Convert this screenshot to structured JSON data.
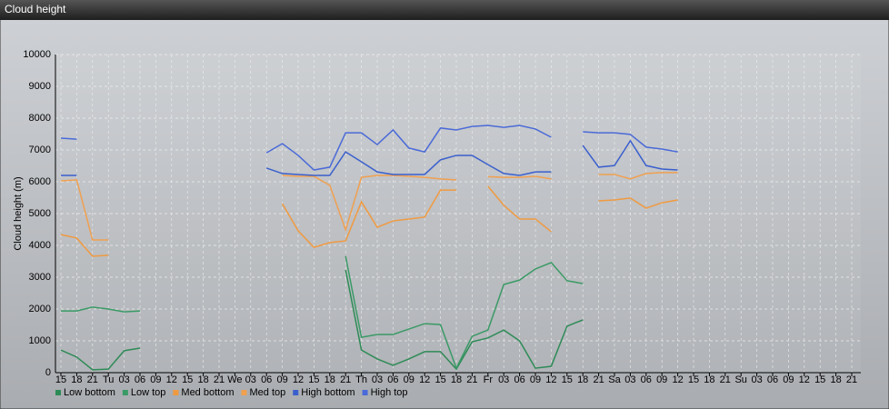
{
  "chart_data": {
    "type": "line",
    "title": "Cloud height",
    "y_label": "Cloud height (m)",
    "categories": [
      "15",
      "18",
      "21",
      "Tu",
      "03",
      "06",
      "09",
      "12",
      "15",
      "18",
      "21",
      "We",
      "03",
      "06",
      "09",
      "12",
      "15",
      "18",
      "21",
      "Th",
      "03",
      "06",
      "09",
      "12",
      "15",
      "18",
      "21",
      "Fr",
      "03",
      "06",
      "09",
      "12",
      "15",
      "18",
      "21",
      "Sa",
      "03",
      "06",
      "09",
      "12",
      "15",
      "18",
      "21",
      "Su",
      "03",
      "06",
      "09",
      "12",
      "15",
      "18",
      "21"
    ],
    "ylim": [
      0,
      10000
    ],
    "yticks": [
      0,
      1000,
      2000,
      3000,
      4000,
      5000,
      6000,
      7000,
      8000,
      9000,
      10000
    ],
    "grid": true,
    "legend": "bottom",
    "series": [
      {
        "name": "Low bottom",
        "color": "#2e8b57",
        "values": [
          710,
          490,
          90,
          110,
          690,
          770,
          null,
          null,
          null,
          null,
          null,
          null,
          null,
          null,
          null,
          null,
          null,
          null,
          3230,
          710,
          430,
          230,
          430,
          660,
          660,
          110,
          970,
          1090,
          1340,
          1000,
          140,
          200,
          1460,
          1660,
          null,
          null,
          null,
          null,
          null,
          null,
          null,
          null,
          null,
          null,
          null,
          null,
          null,
          null,
          null,
          null,
          null
        ]
      },
      {
        "name": "Low top",
        "color": "#3a9a66",
        "values": [
          1940,
          1940,
          2060,
          2000,
          1910,
          1940,
          null,
          null,
          null,
          null,
          null,
          null,
          null,
          null,
          null,
          null,
          null,
          null,
          3660,
          1110,
          1200,
          1200,
          1370,
          1540,
          1510,
          140,
          1140,
          1340,
          2770,
          2910,
          3260,
          3460,
          2890,
          2800,
          null,
          null,
          null,
          null,
          null,
          null,
          null,
          null,
          null,
          null,
          null,
          null,
          null,
          null,
          null,
          null,
          null
        ]
      },
      {
        "name": "Med bottom",
        "color": "#f09a40",
        "values": [
          4340,
          4230,
          3660,
          3690,
          null,
          null,
          null,
          null,
          null,
          null,
          null,
          null,
          null,
          null,
          5310,
          4460,
          3940,
          4090,
          4140,
          5370,
          4570,
          4770,
          4830,
          4890,
          5740,
          5740,
          null,
          5860,
          5260,
          4830,
          4830,
          4430,
          null,
          null,
          5400,
          5430,
          5490,
          5170,
          5340,
          5430,
          null,
          null,
          null,
          null,
          null,
          null,
          null,
          null,
          null,
          null,
          null
        ]
      },
      {
        "name": "Med top",
        "color": "#f0a050",
        "values": [
          6030,
          6060,
          4170,
          4170,
          null,
          null,
          null,
          null,
          null,
          null,
          null,
          null,
          null,
          null,
          6200,
          6170,
          6170,
          5890,
          4490,
          6140,
          6200,
          6200,
          6170,
          6140,
          6090,
          6060,
          null,
          6160,
          6140,
          6140,
          6170,
          6090,
          null,
          null,
          6230,
          6230,
          6090,
          6260,
          6290,
          6290,
          null,
          null,
          null,
          null,
          null,
          null,
          null,
          null,
          null,
          null,
          null
        ]
      },
      {
        "name": "High bottom",
        "color": "#3a5fcd",
        "values": [
          6200,
          6200,
          null,
          null,
          null,
          null,
          null,
          null,
          null,
          null,
          null,
          null,
          null,
          6430,
          6260,
          6230,
          6200,
          6200,
          6940,
          6630,
          6310,
          6230,
          6230,
          6230,
          6690,
          6830,
          6830,
          6540,
          6260,
          6200,
          6310,
          6310,
          null,
          7140,
          6460,
          6510,
          7290,
          6510,
          6400,
          6370,
          null,
          null,
          null,
          null,
          null,
          null,
          null,
          null,
          null,
          null,
          null
        ]
      },
      {
        "name": "High top",
        "color": "#4a6ad8",
        "values": [
          7370,
          7340,
          null,
          null,
          null,
          null,
          null,
          null,
          null,
          null,
          null,
          null,
          null,
          6910,
          7200,
          6830,
          6370,
          6460,
          7540,
          7540,
          7170,
          7630,
          7060,
          6940,
          7690,
          7630,
          7740,
          7770,
          7710,
          7770,
          7660,
          7400,
          null,
          7570,
          7540,
          7540,
          7490,
          7090,
          7030,
          6940,
          null,
          null,
          null,
          null,
          null,
          null,
          null,
          null,
          null,
          null,
          null
        ]
      }
    ]
  }
}
